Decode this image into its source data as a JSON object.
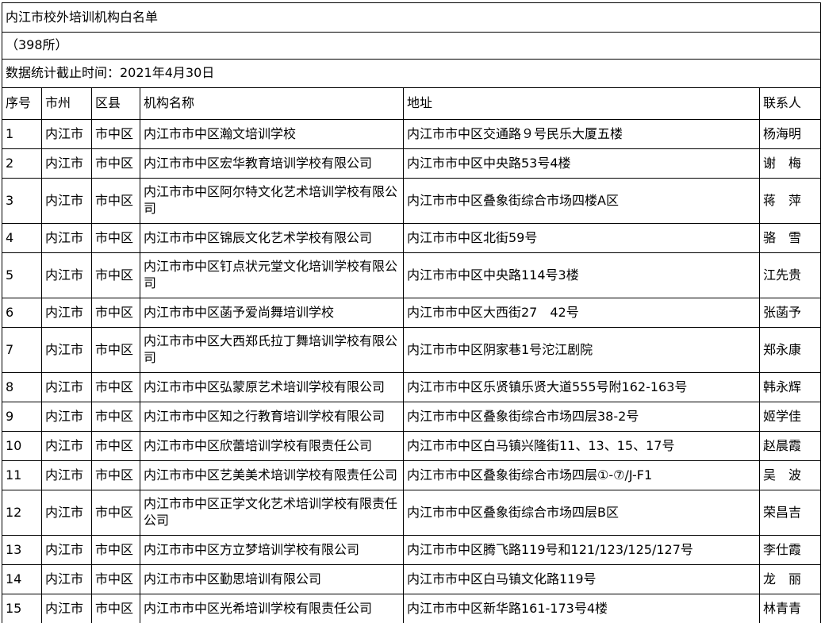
{
  "header": {
    "title": "内江市校外培训机构白名单",
    "count_label": "（398所）",
    "cutoff_note": "数据统计截止时间：2021年4月30日"
  },
  "table": {
    "columns": [
      "序号",
      "市州",
      "区县",
      "机构名称",
      "地址",
      "联系人"
    ],
    "rows": [
      [
        "1",
        "内江市",
        "市中区",
        "内江市市中区瀚文培训学校",
        "内江市市中区交通路９号民乐大厦五楼",
        "杨海明"
      ],
      [
        "2",
        "内江市",
        "市中区",
        "内江市市中区宏华教育培训学校有限公司",
        "内江市市中区中央路53号4楼",
        "谢　梅"
      ],
      [
        "3",
        "内江市",
        "市中区",
        "内江市市中区阿尔特文化艺术培训学校有限公司",
        "内江市市中区叠象街综合市场四楼A区",
        "蒋　萍"
      ],
      [
        "4",
        "内江市",
        "市中区",
        "内江市市中区锦辰文化艺术学校有限公司",
        "内江市市中区北街59号",
        "骆　雪"
      ],
      [
        "5",
        "内江市",
        "市中区",
        "内江市市中区钉点状元堂文化培训学校有限公司",
        "内江市市中区中央路114号3楼",
        "江先贵"
      ],
      [
        "6",
        "内江市",
        "市中区",
        "内江市市中区菡予爱尚舞培训学校",
        "内江市市中区大西街27　42号",
        "张菡予"
      ],
      [
        "7",
        "内江市",
        "市中区",
        "内江市市中区大西郑氏拉丁舞培训学校有限公司",
        "内江市市中区阴家巷1号沱江剧院",
        "郑永康"
      ],
      [
        "8",
        "内江市",
        "市中区",
        "内江市市中区弘蒙原艺术培训学校有限公司",
        "内江市市中区乐贤镇乐贤大道555号附162-163号",
        "韩永辉"
      ],
      [
        "9",
        "内江市",
        "市中区",
        "内江市市中区知之行教育培训学校有限公司",
        "内江市市中区叠象街综合市场四层38-2号",
        "姬学佳"
      ],
      [
        "10",
        "内江市",
        "市中区",
        "内江市市中区欣蕾培训学校有限责任公司",
        "内江市市中区白马镇兴隆街11、13、15、17号",
        "赵晨霞"
      ],
      [
        "11",
        "内江市",
        "市中区",
        "内江市市中区艺美美术培训学校有限责任公司",
        "内江市市中区叠象街综合市场四层①-⑦/J-F1",
        "吴　波"
      ],
      [
        "12",
        "内江市",
        "市中区",
        "内江市市中区正学文化艺术培训学校有限责任公司",
        "内江市市中区叠象街综合市场四层B区",
        "荣昌吉"
      ],
      [
        "13",
        "内江市",
        "市中区",
        "内江市市中区方立梦培训学校有限公司",
        "内江市市中区腾飞路119号和121/123/125/127号",
        "李仕霞"
      ],
      [
        "14",
        "内江市",
        "市中区",
        "内江市市中区勤思培训有限公司",
        "内江市市中区白马镇文化路119号",
        "龙　丽"
      ],
      [
        "15",
        "内江市",
        "市中区",
        "内江市市中区光希培训学校有限责任公司",
        "内江市市中区新华路161-173号4楼",
        "林青青"
      ]
    ]
  }
}
